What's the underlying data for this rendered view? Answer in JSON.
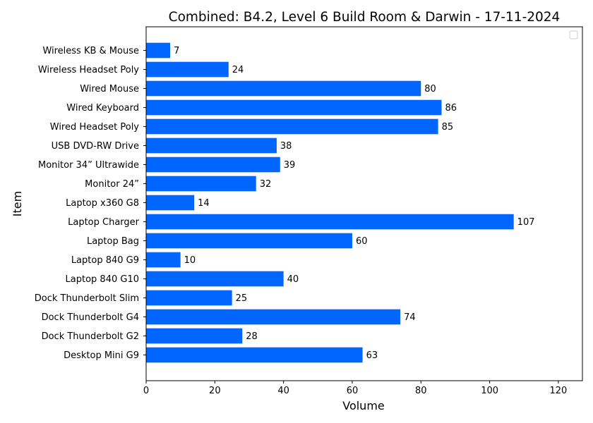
{
  "chart_data": {
    "type": "bar",
    "orientation": "horizontal",
    "title": "Combined: B4.2, Level 6 Build Room & Darwin - 17-11-2024",
    "xlabel": "Volume",
    "ylabel": "Item",
    "xlim": [
      0,
      127
    ],
    "xticks": [
      "0",
      "20",
      "40",
      "60",
      "80",
      "100",
      "120"
    ],
    "categories": [
      "Desktop Mini G9",
      "Dock Thunderbolt G2",
      "Dock Thunderbolt G4",
      "Dock Thunderbolt Slim",
      "Laptop 840 G10",
      "Laptop 840 G9",
      "Laptop Bag",
      "Laptop Charger ",
      "Laptop x360 G8",
      "Monitor 24” ",
      "Monitor 34” Ultrawide",
      "USB DVD-RW Drive",
      "Wired Headset Poly",
      "Wired Keyboard",
      "Wired Mouse",
      "Wireless Headset Poly ",
      "Wireless KB & Mouse"
    ],
    "values": [
      63,
      28,
      74,
      25,
      40,
      10,
      60,
      107,
      14,
      32,
      39,
      38,
      85,
      86,
      80,
      24,
      7
    ],
    "bar_color": "#0066ff",
    "grid": false,
    "legend": "top-right, empty"
  }
}
